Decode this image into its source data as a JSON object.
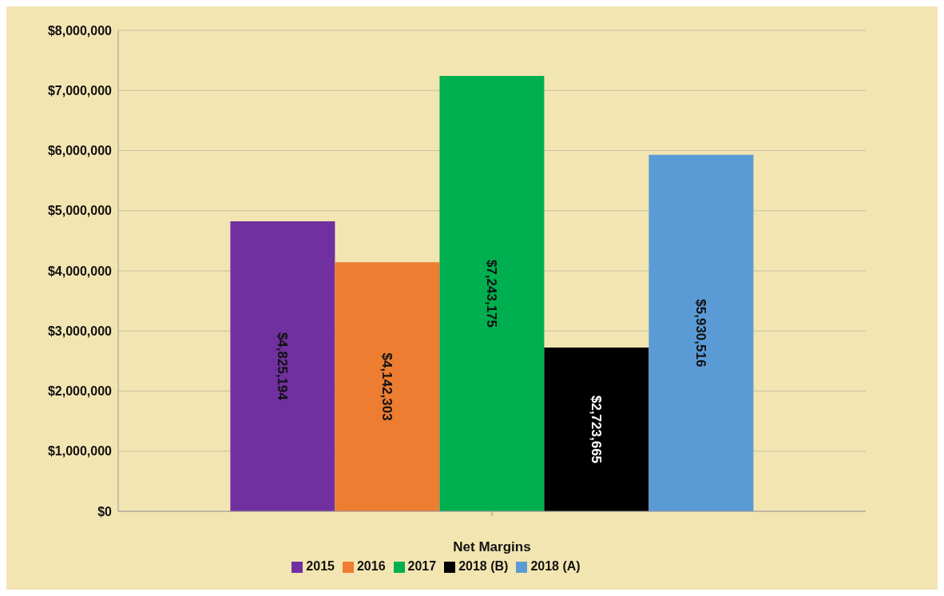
{
  "chart_data": {
    "type": "bar",
    "xlabel": "Net Margins",
    "categories": [
      null
    ],
    "series": [
      {
        "name": "2015",
        "color": "#7030a0",
        "values": [
          4825194
        ],
        "value_labels": [
          "$4,825,194"
        ]
      },
      {
        "name": "2016",
        "color": "#ed7d31",
        "values": [
          4142303
        ],
        "value_labels": [
          "$4,142,303"
        ]
      },
      {
        "name": "2017",
        "color": "#00b050",
        "values": [
          7243175
        ],
        "value_labels": [
          "$7,243,175"
        ]
      },
      {
        "name": "2018 (B)",
        "color": "#000000",
        "values": [
          2723665
        ],
        "value_labels": [
          "$2,723,665"
        ]
      },
      {
        "name": "2018 (A)",
        "color": "#5b9bd5",
        "values": [
          5930516
        ],
        "value_labels": [
          "$5,930,516"
        ]
      }
    ],
    "ylim": [
      0,
      8000000
    ],
    "yticks": [
      {
        "value": 0,
        "label": "$0"
      },
      {
        "value": 1000000,
        "label": "$1,000,000"
      },
      {
        "value": 2000000,
        "label": "$2,000,000"
      },
      {
        "value": 3000000,
        "label": "$3,000,000"
      },
      {
        "value": 4000000,
        "label": "$4,000,000"
      },
      {
        "value": 5000000,
        "label": "$5,000,000"
      },
      {
        "value": 6000000,
        "label": "$6,000,000"
      },
      {
        "value": 7000000,
        "label": "$7,000,000"
      },
      {
        "value": 8000000,
        "label": "$8,000,000"
      }
    ],
    "grid": "y",
    "legend": "bottom"
  }
}
